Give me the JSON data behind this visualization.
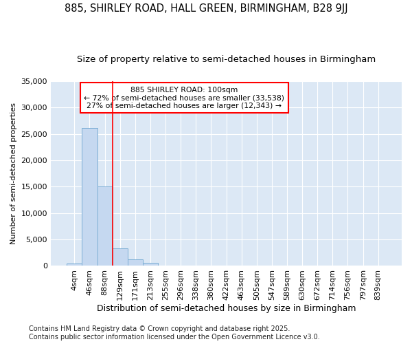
{
  "title": "885, SHIRLEY ROAD, HALL GREEN, BIRMINGHAM, B28 9JJ",
  "subtitle": "Size of property relative to semi-detached houses in Birmingham",
  "xlabel": "Distribution of semi-detached houses by size in Birmingham",
  "ylabel": "Number of semi-detached properties",
  "bin_labels": [
    "4sqm",
    "46sqm",
    "88sqm",
    "129sqm",
    "171sqm",
    "213sqm",
    "255sqm",
    "296sqm",
    "338sqm",
    "380sqm",
    "422sqm",
    "463sqm",
    "505sqm",
    "547sqm",
    "589sqm",
    "630sqm",
    "672sqm",
    "714sqm",
    "756sqm",
    "797sqm",
    "839sqm"
  ],
  "bar_heights": [
    500,
    26100,
    15100,
    3300,
    1200,
    600,
    100,
    0,
    0,
    0,
    0,
    0,
    0,
    0,
    0,
    0,
    0,
    0,
    0,
    0,
    0
  ],
  "bar_color": "#c5d8f0",
  "bar_edge_color": "#7aadd4",
  "red_line_x": 2.5,
  "annotation_text": "885 SHIRLEY ROAD: 100sqm\n← 72% of semi-detached houses are smaller (33,538)\n27% of semi-detached houses are larger (12,343) →",
  "ylim": [
    0,
    35000
  ],
  "yticks": [
    0,
    5000,
    10000,
    15000,
    20000,
    25000,
    30000,
    35000
  ],
  "page_background": "#ffffff",
  "plot_background": "#dce8f5",
  "grid_color": "#ffffff",
  "footer_text": "Contains HM Land Registry data © Crown copyright and database right 2025.\nContains public sector information licensed under the Open Government Licence v3.0.",
  "title_fontsize": 10.5,
  "subtitle_fontsize": 9.5,
  "tick_fontsize": 8,
  "footer_fontsize": 7,
  "ylabel_fontsize": 8,
  "xlabel_fontsize": 9
}
